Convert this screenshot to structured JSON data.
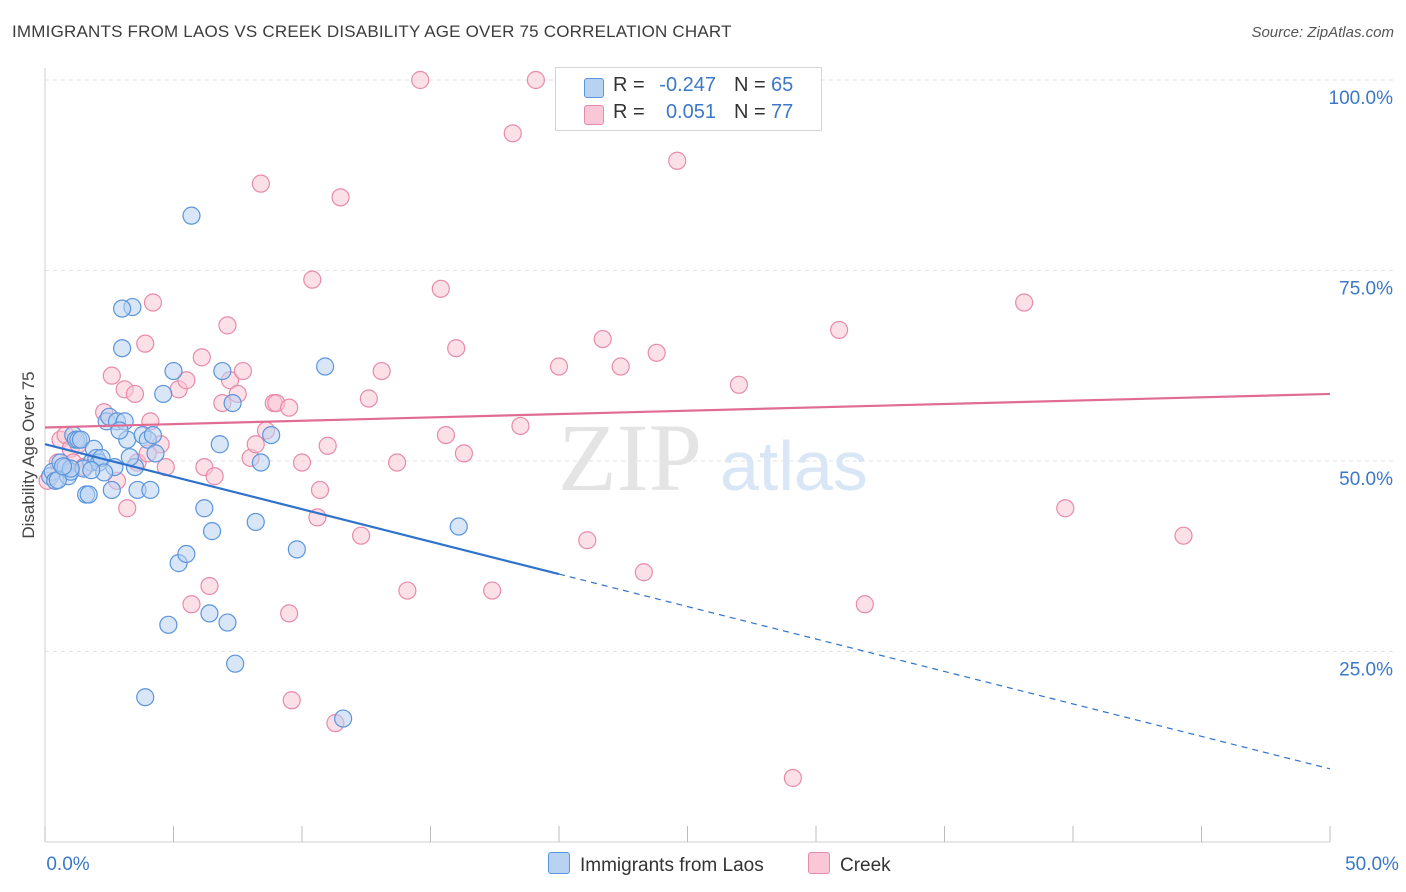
{
  "title": "IMMIGRANTS FROM LAOS VS CREEK DISABILITY AGE OVER 75 CORRELATION CHART",
  "source": "Source: ZipAtlas.com",
  "watermark": {
    "zip": "ZIP",
    "atlas": "atlas"
  },
  "colors": {
    "blue_fill": "#b8d2f2",
    "blue_stroke": "#5b95dc",
    "blue_line": "#2f72cc",
    "pink_fill": "#f9c7d6",
    "pink_stroke": "#e88aaa",
    "pink_line": "#e06c93",
    "axis_label": "#3b78c8",
    "grid": "#e2e2e2"
  },
  "legend": {
    "rows": [
      {
        "r_label": "R =",
        "r_value": "-0.247",
        "n_label": "N =",
        "n_value": "65"
      },
      {
        "r_label": "R =",
        "r_value": "0.051",
        "n_label": "N =",
        "n_value": "77"
      }
    ]
  },
  "bottom_legend": {
    "blue_label": "Immigrants from Laos",
    "pink_label": "Creek"
  },
  "chart_data": {
    "type": "scatter",
    "title": "IMMIGRANTS FROM LAOS VS CREEK DISABILITY AGE OVER 75 CORRELATION CHART",
    "xlabel": "",
    "ylabel": "Disability Age Over 75",
    "xlim": [
      0,
      50
    ],
    "ylim": [
      0,
      100
    ],
    "x_tick_labels": [
      "0.0%",
      "50.0%"
    ],
    "y_ticks": [
      25,
      50,
      75,
      100
    ],
    "y_tick_labels": [
      "25.0%",
      "50.0%",
      "75.0%",
      "100.0%"
    ],
    "grid": true,
    "legend_position": "top-center",
    "series": [
      {
        "name": "Immigrants from Laos",
        "color": "#5b95dc",
        "r": -0.247,
        "n": 65,
        "trend": {
          "x": [
            0,
            50
          ],
          "y": [
            52.2,
            9.6
          ],
          "solid_until_x": 20
        },
        "points": [
          [
            0.2,
            48.0
          ],
          [
            0.3,
            48.6
          ],
          [
            0.4,
            47.4
          ],
          [
            0.6,
            49.8
          ],
          [
            0.8,
            49.2
          ],
          [
            0.9,
            48.0
          ],
          [
            1.0,
            48.6
          ],
          [
            1.1,
            53.4
          ],
          [
            1.2,
            52.8
          ],
          [
            1.3,
            52.8
          ],
          [
            1.4,
            52.8
          ],
          [
            1.6,
            45.6
          ],
          [
            1.7,
            45.6
          ],
          [
            1.8,
            49.8
          ],
          [
            1.9,
            51.6
          ],
          [
            2.0,
            50.4
          ],
          [
            2.1,
            49.8
          ],
          [
            2.2,
            50.4
          ],
          [
            2.4,
            55.2
          ],
          [
            2.5,
            55.8
          ],
          [
            2.6,
            46.2
          ],
          [
            2.7,
            49.2
          ],
          [
            2.8,
            55.2
          ],
          [
            3.0,
            64.8
          ],
          [
            3.1,
            55.2
          ],
          [
            3.2,
            52.8
          ],
          [
            3.4,
            70.2
          ],
          [
            3.5,
            49.2
          ],
          [
            3.6,
            46.2
          ],
          [
            3.8,
            53.4
          ],
          [
            4.0,
            52.8
          ],
          [
            4.1,
            46.2
          ],
          [
            4.2,
            53.4
          ],
          [
            4.3,
            51.0
          ],
          [
            4.6,
            58.8
          ],
          [
            5.0,
            61.8
          ],
          [
            5.2,
            36.6
          ],
          [
            5.5,
            37.8
          ],
          [
            5.7,
            82.2
          ],
          [
            6.2,
            43.8
          ],
          [
            6.4,
            30.0
          ],
          [
            6.5,
            40.8
          ],
          [
            6.8,
            52.2
          ],
          [
            6.9,
            61.8
          ],
          [
            7.1,
            28.8
          ],
          [
            7.3,
            57.6
          ],
          [
            7.4,
            23.4
          ],
          [
            8.2,
            42.0
          ],
          [
            8.4,
            49.8
          ],
          [
            8.8,
            53.4
          ],
          [
            9.8,
            38.4
          ],
          [
            10.9,
            62.4
          ],
          [
            11.6,
            16.2
          ],
          [
            16.1,
            41.4
          ],
          [
            3.0,
            70.0
          ],
          [
            1.5,
            49.0
          ],
          [
            2.3,
            48.5
          ],
          [
            3.9,
            19.0
          ],
          [
            4.8,
            28.5
          ],
          [
            0.5,
            47.5
          ],
          [
            1.0,
            49.0
          ],
          [
            2.9,
            54.0
          ],
          [
            0.7,
            49.3
          ],
          [
            1.8,
            48.8
          ],
          [
            3.3,
            50.5
          ]
        ]
      },
      {
        "name": "Creek",
        "color": "#e88aaa",
        "r": 0.051,
        "n": 77,
        "trend": {
          "x": [
            0,
            50
          ],
          "y": [
            54.4,
            58.8
          ]
        },
        "points": [
          [
            0.1,
            47.4
          ],
          [
            0.5,
            49.8
          ],
          [
            0.6,
            52.8
          ],
          [
            0.8,
            53.4
          ],
          [
            1.0,
            51.6
          ],
          [
            1.1,
            49.8
          ],
          [
            1.3,
            52.2
          ],
          [
            1.5,
            49.2
          ],
          [
            2.3,
            56.4
          ],
          [
            2.6,
            61.2
          ],
          [
            2.8,
            47.4
          ],
          [
            3.1,
            59.4
          ],
          [
            3.2,
            43.8
          ],
          [
            3.5,
            58.8
          ],
          [
            3.6,
            49.8
          ],
          [
            3.9,
            65.4
          ],
          [
            4.1,
            55.2
          ],
          [
            4.2,
            70.8
          ],
          [
            4.5,
            52.2
          ],
          [
            4.7,
            49.2
          ],
          [
            5.2,
            59.4
          ],
          [
            5.5,
            60.6
          ],
          [
            5.7,
            31.2
          ],
          [
            6.1,
            63.6
          ],
          [
            6.2,
            49.2
          ],
          [
            6.4,
            33.6
          ],
          [
            6.6,
            48.0
          ],
          [
            6.9,
            57.6
          ],
          [
            7.1,
            67.8
          ],
          [
            7.2,
            60.6
          ],
          [
            7.5,
            58.8
          ],
          [
            7.7,
            61.8
          ],
          [
            8.0,
            50.4
          ],
          [
            8.2,
            52.2
          ],
          [
            8.4,
            86.4
          ],
          [
            8.6,
            54.0
          ],
          [
            8.9,
            57.6
          ],
          [
            9.0,
            57.6
          ],
          [
            9.5,
            30.0
          ],
          [
            9.6,
            18.6
          ],
          [
            10.0,
            49.8
          ],
          [
            10.4,
            73.8
          ],
          [
            10.6,
            42.6
          ],
          [
            10.7,
            46.2
          ],
          [
            11.3,
            15.6
          ],
          [
            11.5,
            84.6
          ],
          [
            12.3,
            40.2
          ],
          [
            12.6,
            58.2
          ],
          [
            13.1,
            61.8
          ],
          [
            13.7,
            49.8
          ],
          [
            14.1,
            33.0
          ],
          [
            14.6,
            100.0
          ],
          [
            15.4,
            72.6
          ],
          [
            15.6,
            53.4
          ],
          [
            16.0,
            64.8
          ],
          [
            16.3,
            51.0
          ],
          [
            17.4,
            33.0
          ],
          [
            18.2,
            93.0
          ],
          [
            18.5,
            54.6
          ],
          [
            19.1,
            100.0
          ],
          [
            20.0,
            62.4
          ],
          [
            21.1,
            39.6
          ],
          [
            21.7,
            66.0
          ],
          [
            22.4,
            62.4
          ],
          [
            23.3,
            35.4
          ],
          [
            23.8,
            64.2
          ],
          [
            24.6,
            89.4
          ],
          [
            27.0,
            60.0
          ],
          [
            29.1,
            8.4
          ],
          [
            30.9,
            67.2
          ],
          [
            31.9,
            31.2
          ],
          [
            38.1,
            70.8
          ],
          [
            39.7,
            43.8
          ],
          [
            44.3,
            40.2
          ],
          [
            4.0,
            51.0
          ],
          [
            9.5,
            57.0
          ],
          [
            11.0,
            52.0
          ]
        ]
      }
    ]
  }
}
